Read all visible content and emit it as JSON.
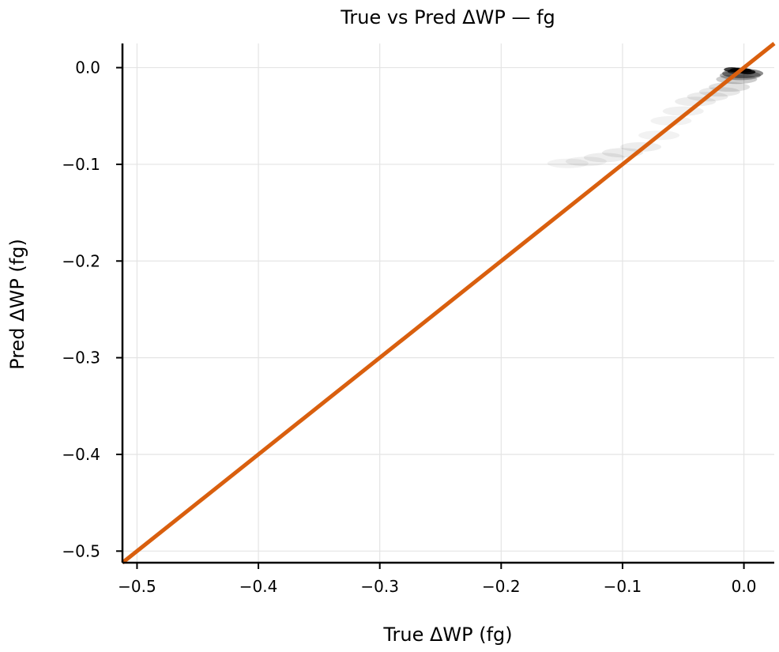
{
  "chart_data": {
    "type": "scatter",
    "title": "True vs Pred ΔWP — fg",
    "xlabel": "True ΔWP (fg)",
    "ylabel": "Pred ΔWP (fg)",
    "xlim": [
      -0.512,
      0.025
    ],
    "ylim": [
      -0.512,
      0.025
    ],
    "xticks": [
      -0.5,
      -0.4,
      -0.3,
      -0.2,
      -0.1,
      0.0
    ],
    "yticks": [
      -0.5,
      -0.4,
      -0.3,
      -0.2,
      -0.1,
      0.0
    ],
    "xtick_labels": [
      "−0.5",
      "−0.4",
      "−0.3",
      "−0.2",
      "−0.1",
      "0.0"
    ],
    "ytick_labels": [
      "−0.5",
      "−0.4",
      "−0.3",
      "−0.2",
      "−0.1",
      "0.0"
    ],
    "grid": true,
    "series": [
      {
        "type": "density",
        "color": "#000000",
        "points": [
          {
            "x": -0.145,
            "y": -0.099,
            "w": 0.05
          },
          {
            "x": -0.13,
            "y": -0.097,
            "w": 0.06
          },
          {
            "x": -0.115,
            "y": -0.093,
            "w": 0.07
          },
          {
            "x": -0.1,
            "y": -0.088,
            "w": 0.08
          },
          {
            "x": -0.085,
            "y": -0.082,
            "w": 0.07
          },
          {
            "x": -0.07,
            "y": -0.07,
            "w": 0.05
          },
          {
            "x": -0.06,
            "y": -0.055,
            "w": 0.05
          },
          {
            "x": -0.05,
            "y": -0.045,
            "w": 0.06
          },
          {
            "x": -0.04,
            "y": -0.035,
            "w": 0.07
          },
          {
            "x": -0.03,
            "y": -0.03,
            "w": 0.08
          },
          {
            "x": -0.02,
            "y": -0.025,
            "w": 0.09
          },
          {
            "x": -0.012,
            "y": -0.02,
            "w": 0.12
          },
          {
            "x": -0.006,
            "y": -0.012,
            "w": 0.2
          },
          {
            "x": -0.003,
            "y": -0.008,
            "w": 0.3
          },
          {
            "x": -0.001,
            "y": -0.006,
            "w": 0.45
          },
          {
            "x": -0.01,
            "y": -0.002,
            "w": 0.75
          },
          {
            "x": -0.005,
            "y": -0.0025,
            "w": 0.85
          },
          {
            "x": 0.0,
            "y": -0.003,
            "w": 0.9
          },
          {
            "x": 0.003,
            "y": -0.0045,
            "w": 0.85
          },
          {
            "x": -0.007,
            "y": -0.004,
            "w": 0.6
          }
        ]
      },
      {
        "type": "reference_line",
        "color": "#d95f0e",
        "x": [
          -0.512,
          0.025
        ],
        "y": [
          -0.512,
          0.025
        ]
      }
    ]
  }
}
